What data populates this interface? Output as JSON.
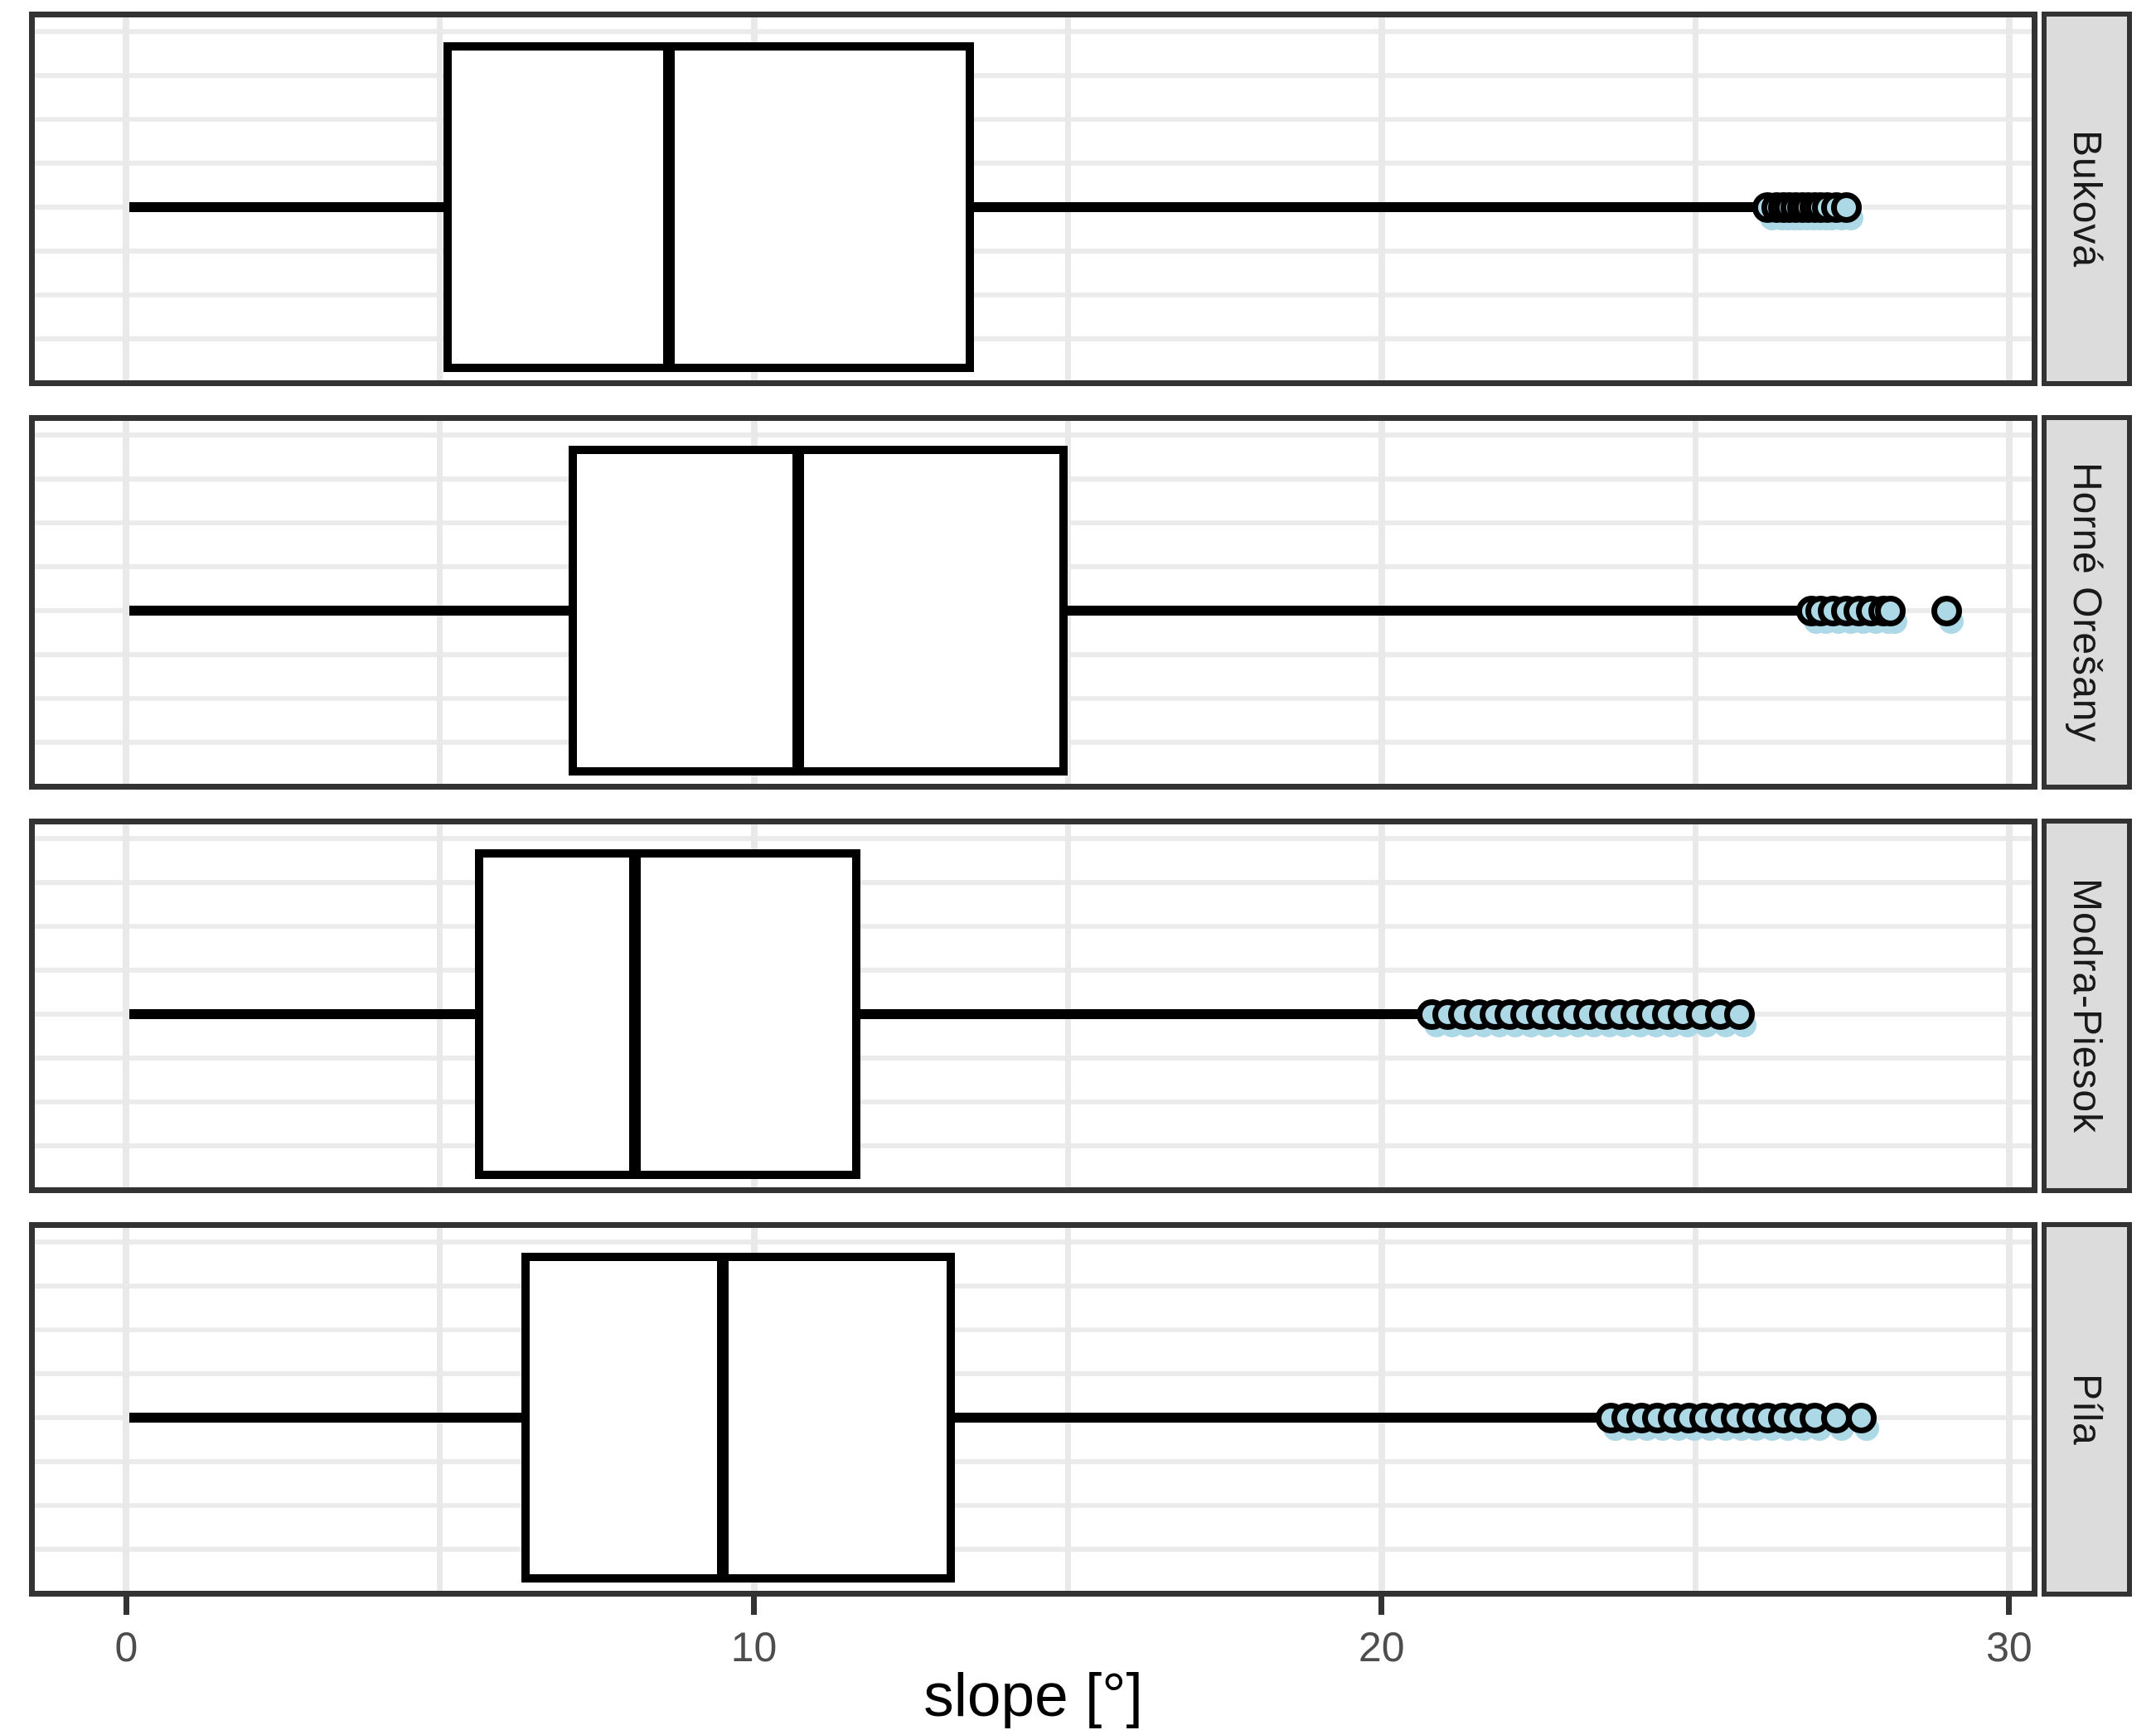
{
  "chart_data": {
    "type": "boxplot",
    "orientation": "horizontal",
    "title": "",
    "xlabel": "slope [°]",
    "ylabel": "",
    "xlim": [
      -1.55,
      30.45
    ],
    "x_ticks": [
      0,
      10,
      20,
      30
    ],
    "x_minor_ticks": [
      5,
      15,
      25
    ],
    "grid": "on",
    "legend": "none",
    "facet_strip_side": "right",
    "facets": [
      {
        "label": "Buková",
        "min": 0.05,
        "q1": 5.05,
        "median": 8.65,
        "q3": 13.5,
        "max": 26.05,
        "outliers": [
          26.15,
          26.3,
          26.4,
          26.5,
          26.6,
          26.7,
          26.8,
          26.9,
          27.0,
          27.1,
          27.25,
          27.4
        ]
      },
      {
        "label": "Horné Orešany",
        "min": 0.05,
        "q1": 7.05,
        "median": 10.7,
        "q3": 15.0,
        "max": 26.7,
        "outliers": [
          26.85,
          27.0,
          27.2,
          27.4,
          27.6,
          27.8,
          28.0,
          28.1,
          29.0
        ]
      },
      {
        "label": "Modra-Piesok",
        "min": 0.05,
        "q1": 5.55,
        "median": 8.1,
        "q3": 11.7,
        "max": 20.65,
        "outliers": [
          20.8,
          21.05,
          21.3,
          21.55,
          21.8,
          22.05,
          22.3,
          22.55,
          22.8,
          23.05,
          23.3,
          23.55,
          23.8,
          24.05,
          24.3,
          24.55,
          24.8,
          25.1,
          25.4,
          25.7
        ]
      },
      {
        "label": "Píla",
        "min": 0.05,
        "q1": 6.3,
        "median": 9.5,
        "q3": 13.2,
        "max": 23.45,
        "outliers": [
          23.65,
          23.9,
          24.15,
          24.4,
          24.65,
          24.9,
          25.15,
          25.4,
          25.65,
          25.9,
          26.15,
          26.4,
          26.65,
          26.9,
          27.25,
          27.65
        ]
      }
    ],
    "colors": {
      "outlier_fill": "#ADD8E6",
      "box_line": "#000000",
      "box_fill": "#ffffff",
      "panel_border": "#333333",
      "gridline": "#EBEBEB",
      "strip_fill": "#DCDCDC",
      "strip_text": "#1A1A1A",
      "tick_label": "#4D4D4D",
      "axis_title": "#000000"
    }
  }
}
